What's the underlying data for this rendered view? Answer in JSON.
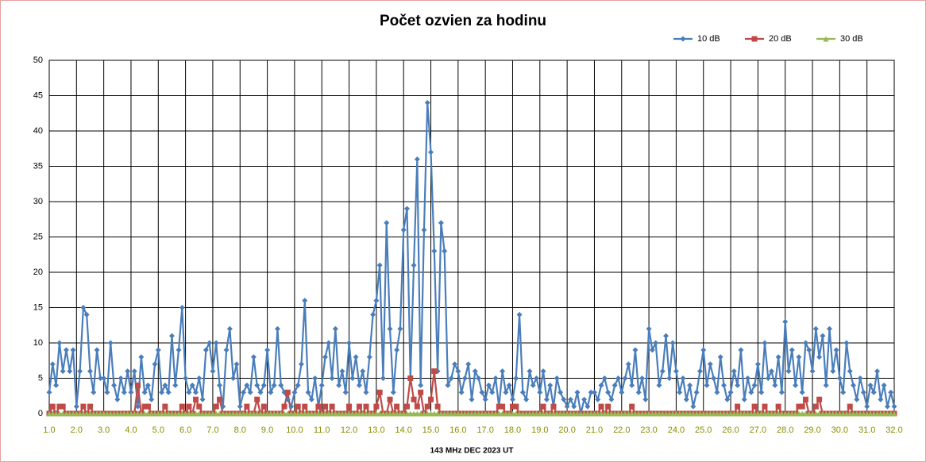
{
  "chart_data": {
    "type": "line",
    "title": "Počet ozvien za hodinu",
    "xlabel": "143 MHz DEC  2023  UT",
    "legend": "top-right",
    "grid": true,
    "xlim": [
      1,
      32
    ],
    "ylim": [
      0,
      50
    ],
    "yticks": [
      0,
      5,
      10,
      15,
      20,
      25,
      30,
      35,
      40,
      45,
      50
    ],
    "xticks": [
      {
        "value": 1,
        "label": "1.0"
      },
      {
        "value": 2,
        "label": "2.0"
      },
      {
        "value": 3,
        "label": "3.0"
      },
      {
        "value": 4,
        "label": "4.0"
      },
      {
        "value": 5,
        "label": "5.0"
      },
      {
        "value": 6,
        "label": "6.0"
      },
      {
        "value": 7,
        "label": "7.0"
      },
      {
        "value": 8,
        "label": "8.0"
      },
      {
        "value": 9,
        "label": "9.0"
      },
      {
        "value": 10,
        "label": "10.0"
      },
      {
        "value": 11,
        "label": "11.0"
      },
      {
        "value": 12,
        "label": "12.0"
      },
      {
        "value": 13,
        "label": "13.0"
      },
      {
        "value": 14,
        "label": "14.0"
      },
      {
        "value": 15,
        "label": "15.0"
      },
      {
        "value": 16,
        "label": "16.0"
      },
      {
        "value": 17,
        "label": "17.0"
      },
      {
        "value": 18,
        "label": "18.0"
      },
      {
        "value": 19,
        "label": "19.0"
      },
      {
        "value": 20,
        "label": "20.0"
      },
      {
        "value": 21,
        "label": "21.0"
      },
      {
        "value": 22,
        "label": "22.0"
      },
      {
        "value": 23,
        "label": "23.0"
      },
      {
        "value": 24,
        "label": "24.0"
      },
      {
        "value": 25,
        "label": "25.0"
      },
      {
        "value": 26,
        "label": "26.0"
      },
      {
        "value": 27,
        "label": "27.0"
      },
      {
        "value": 28,
        "label": "28.0"
      },
      {
        "value": 29,
        "label": "29.0"
      },
      {
        "value": 30,
        "label": "30.0"
      },
      {
        "value": 31,
        "label": "31.0"
      },
      {
        "value": 32,
        "label": "32.0"
      }
    ],
    "x": [
      1,
      1.125,
      1.25,
      1.375,
      1.5,
      1.625,
      1.75,
      1.875,
      2,
      2.125,
      2.25,
      2.375,
      2.5,
      2.625,
      2.75,
      2.875,
      3,
      3.125,
      3.25,
      3.375,
      3.5,
      3.625,
      3.75,
      3.875,
      4,
      4.125,
      4.25,
      4.375,
      4.5,
      4.625,
      4.75,
      4.875,
      5,
      5.125,
      5.25,
      5.375,
      5.5,
      5.625,
      5.75,
      5.875,
      6,
      6.125,
      6.25,
      6.375,
      6.5,
      6.625,
      6.75,
      6.875,
      7,
      7.125,
      7.25,
      7.375,
      7.5,
      7.625,
      7.75,
      7.875,
      8,
      8.125,
      8.25,
      8.375,
      8.5,
      8.625,
      8.75,
      8.875,
      9,
      9.125,
      9.25,
      9.375,
      9.5,
      9.625,
      9.75,
      9.875,
      10,
      10.125,
      10.25,
      10.375,
      10.5,
      10.625,
      10.75,
      10.875,
      11,
      11.125,
      11.25,
      11.375,
      11.5,
      11.625,
      11.75,
      11.875,
      12,
      12.125,
      12.25,
      12.375,
      12.5,
      12.625,
      12.75,
      12.875,
      13,
      13.125,
      13.25,
      13.375,
      13.5,
      13.625,
      13.75,
      13.875,
      14,
      14.125,
      14.25,
      14.375,
      14.5,
      14.625,
      14.75,
      14.875,
      15,
      15.125,
      15.25,
      15.375,
      15.5,
      15.625,
      15.75,
      15.875,
      16,
      16.125,
      16.25,
      16.375,
      16.5,
      16.625,
      16.75,
      16.875,
      17,
      17.125,
      17.25,
      17.375,
      17.5,
      17.625,
      17.75,
      17.875,
      18,
      18.125,
      18.25,
      18.375,
      18.5,
      18.625,
      18.75,
      18.875,
      19,
      19.125,
      19.25,
      19.375,
      19.5,
      19.625,
      19.75,
      19.875,
      20,
      20.125,
      20.25,
      20.375,
      20.5,
      20.625,
      20.75,
      20.875,
      21,
      21.125,
      21.25,
      21.375,
      21.5,
      21.625,
      21.75,
      21.875,
      22,
      22.125,
      22.25,
      22.375,
      22.5,
      22.625,
      22.75,
      22.875,
      23,
      23.125,
      23.25,
      23.375,
      23.5,
      23.625,
      23.75,
      23.875,
      24,
      24.125,
      24.25,
      24.375,
      24.5,
      24.625,
      24.75,
      24.875,
      25,
      25.125,
      25.25,
      25.375,
      25.5,
      25.625,
      25.75,
      25.875,
      26,
      26.125,
      26.25,
      26.375,
      26.5,
      26.625,
      26.75,
      26.875,
      27,
      27.125,
      27.25,
      27.375,
      27.5,
      27.625,
      27.75,
      27.875,
      28,
      28.125,
      28.25,
      28.375,
      28.5,
      28.625,
      28.75,
      28.875,
      29,
      29.125,
      29.25,
      29.375,
      29.5,
      29.625,
      29.75,
      29.875,
      30,
      30.125,
      30.25,
      30.375,
      30.5,
      30.625,
      30.75,
      30.875,
      31,
      31.125,
      31.25,
      31.375,
      31.5,
      31.625,
      31.75,
      31.875,
      32
    ],
    "series": [
      {
        "name": "10 dB",
        "color": "#4a7ebb",
        "marker": "diamond",
        "values": [
          3,
          7,
          4,
          10,
          6,
          9,
          6,
          9,
          1,
          6,
          15,
          14,
          6,
          3,
          9,
          5,
          5,
          3,
          10,
          4,
          2,
          5,
          3,
          6,
          3,
          6,
          1,
          8,
          3,
          4,
          2,
          7,
          9,
          3,
          4,
          3,
          11,
          4,
          9,
          15,
          5,
          3,
          4,
          3,
          5,
          2,
          9,
          10,
          6,
          10,
          4,
          1,
          9,
          12,
          5,
          7,
          1,
          3,
          4,
          3,
          8,
          4,
          3,
          4,
          9,
          3,
          4,
          12,
          4,
          3,
          2,
          1,
          3,
          4,
          7,
          16,
          3,
          2,
          5,
          1,
          4,
          8,
          10,
          5,
          12,
          4,
          6,
          3,
          10,
          5,
          8,
          4,
          6,
          3,
          8,
          14,
          16,
          21,
          5,
          27,
          12,
          3,
          9,
          12,
          26,
          29,
          5,
          21,
          36,
          4,
          26,
          44,
          37,
          23,
          6,
          27,
          23,
          4,
          5,
          7,
          6,
          3,
          5,
          7,
          2,
          6,
          5,
          3,
          2,
          4,
          3,
          5,
          1,
          6,
          3,
          4,
          2,
          5,
          14,
          3,
          2,
          6,
          4,
          5,
          3,
          6,
          2,
          4,
          1,
          5,
          3,
          2,
          1,
          2,
          1,
          3,
          0,
          2,
          1,
          3,
          3,
          2,
          4,
          5,
          3,
          2,
          4,
          5,
          3,
          5,
          7,
          4,
          9,
          3,
          5,
          2,
          12,
          9,
          10,
          4,
          6,
          11,
          5,
          10,
          6,
          3,
          5,
          2,
          4,
          1,
          3,
          6,
          9,
          4,
          7,
          5,
          3,
          8,
          4,
          2,
          3,
          6,
          4,
          9,
          2,
          5,
          3,
          4,
          7,
          3,
          10,
          5,
          6,
          4,
          8,
          3,
          13,
          6,
          9,
          4,
          8,
          3,
          10,
          9,
          6,
          12,
          8,
          11,
          4,
          12,
          6,
          9,
          5,
          3,
          10,
          6,
          4,
          2,
          5,
          3,
          1,
          4,
          3,
          6,
          2,
          4,
          1,
          3,
          1
        ]
      },
      {
        "name": "20 dB",
        "color": "#be4b48",
        "marker": "square",
        "values": [
          0,
          1,
          0,
          1,
          1,
          0,
          0,
          0,
          0,
          0,
          1,
          0,
          1,
          0,
          0,
          0,
          0,
          0,
          0,
          0,
          0,
          0,
          0,
          0,
          0,
          0,
          4,
          0,
          1,
          1,
          0,
          0,
          0,
          0,
          1,
          0,
          0,
          0,
          0,
          1,
          0,
          1,
          0,
          2,
          1,
          0,
          0,
          0,
          0,
          1,
          2,
          0,
          0,
          0,
          0,
          0,
          0,
          0,
          1,
          0,
          0,
          2,
          0,
          1,
          0,
          0,
          0,
          0,
          0,
          1,
          3,
          0,
          0,
          1,
          0,
          1,
          0,
          0,
          0,
          1,
          0,
          1,
          0,
          1,
          0,
          0,
          0,
          0,
          1,
          0,
          0,
          1,
          0,
          1,
          0,
          0,
          1,
          3,
          0,
          0,
          2,
          0,
          1,
          0,
          0,
          1,
          5,
          2,
          1,
          3,
          0,
          1,
          2,
          6,
          1,
          0,
          0,
          0,
          0,
          0,
          0,
          0,
          0,
          0,
          0,
          0,
          0,
          0,
          0,
          0,
          0,
          0,
          1,
          1,
          0,
          0,
          1,
          1,
          0,
          0,
          0,
          0,
          0,
          0,
          0,
          1,
          0,
          0,
          1,
          0,
          0,
          0,
          0,
          0,
          0,
          0,
          0,
          0,
          0,
          0,
          0,
          0,
          1,
          0,
          1,
          0,
          0,
          0,
          0,
          0,
          0,
          1,
          0,
          0,
          0,
          0,
          0,
          0,
          0,
          0,
          0,
          0,
          0,
          0,
          0,
          0,
          0,
          0,
          0,
          0,
          0,
          0,
          0,
          0,
          0,
          0,
          0,
          0,
          0,
          0,
          0,
          0,
          1,
          0,
          0,
          0,
          0,
          1,
          0,
          0,
          1,
          0,
          0,
          0,
          1,
          0,
          0,
          0,
          0,
          0,
          1,
          1,
          2,
          0,
          0,
          1,
          2,
          0,
          0,
          0,
          0,
          0,
          0,
          0,
          0,
          1,
          0,
          0,
          0,
          0,
          0,
          0,
          0,
          0,
          0,
          0,
          0,
          0,
          0
        ]
      },
      {
        "name": "30 dB",
        "color": "#98b954",
        "marker": "triangle",
        "values": [
          0,
          0,
          0,
          0,
          0,
          0,
          0,
          0,
          0,
          0,
          0,
          0,
          0,
          0,
          0,
          0,
          0,
          0,
          0,
          0,
          0,
          0,
          0,
          0,
          0,
          0,
          0,
          0,
          0,
          0,
          0,
          0,
          0,
          0,
          0,
          0,
          0,
          0,
          0,
          0,
          0,
          0,
          0,
          0,
          0,
          0,
          0,
          0,
          0,
          0,
          0,
          0,
          0,
          0,
          0,
          0,
          0,
          0,
          0,
          0,
          0,
          0,
          0,
          0,
          0,
          0,
          0,
          0,
          0,
          0,
          0,
          0,
          0,
          0,
          0,
          0,
          0,
          0,
          0,
          0,
          0,
          0,
          0,
          0,
          0,
          0,
          0,
          0,
          0,
          0,
          0,
          0,
          0,
          0,
          0,
          0,
          0,
          0,
          0,
          0,
          0,
          0,
          0,
          0,
          0,
          0,
          0,
          0,
          0,
          0,
          0,
          0,
          0,
          0,
          0,
          0,
          0,
          0,
          0,
          0,
          0,
          0,
          0,
          0,
          0,
          0,
          0,
          0,
          0,
          0,
          0,
          0,
          0,
          0,
          0,
          0,
          0,
          0,
          0,
          0,
          0,
          0,
          0,
          0,
          0,
          0,
          0,
          0,
          0,
          0,
          0,
          0,
          0,
          0,
          0,
          0,
          0,
          0,
          0,
          0,
          0,
          0,
          0,
          0,
          0,
          0,
          0,
          0,
          0,
          0,
          0,
          0,
          0,
          0,
          0,
          0,
          0,
          0,
          0,
          0,
          0,
          0,
          0,
          0,
          0,
          0,
          0,
          0,
          0,
          0,
          0,
          0,
          0,
          0,
          0,
          0,
          0,
          0,
          0,
          0,
          0,
          0,
          0,
          0,
          0,
          0,
          0,
          0,
          0,
          0,
          0,
          0,
          0,
          0,
          0,
          0,
          0,
          0,
          0,
          0,
          0,
          0,
          0,
          0,
          0,
          0,
          0,
          0,
          0,
          0,
          0,
          0,
          0,
          0,
          0,
          0,
          0,
          0,
          0,
          0,
          0,
          0,
          0,
          0,
          0,
          0,
          0,
          0,
          0
        ]
      }
    ]
  }
}
